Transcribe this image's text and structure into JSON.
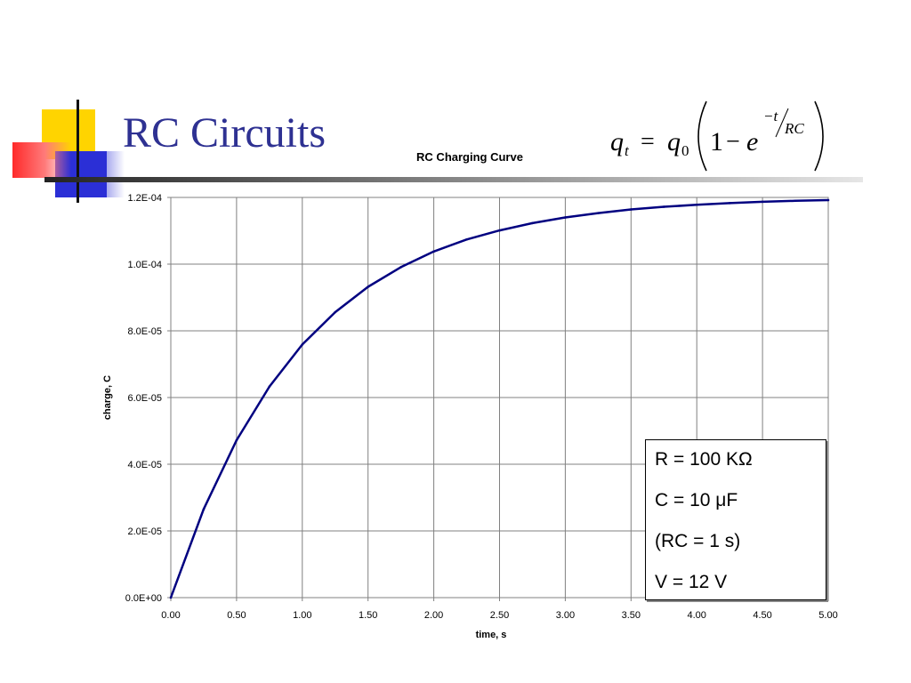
{
  "slide": {
    "title": "RC Circuits",
    "formula": {
      "lhs": "q",
      "lhs_sub": "t",
      "equals": "=",
      "rhs_var": "q",
      "rhs_sub": "0",
      "one": "1",
      "minus": "−",
      "exp_base": "e",
      "exp_num": "−t",
      "exp_den": "RC"
    }
  },
  "chart_data": {
    "type": "line",
    "title": "RC Charging Curve",
    "xlabel": "time, s",
    "ylabel": "charge, C",
    "xlim": [
      0,
      5
    ],
    "ylim": [
      0,
      0.00012
    ],
    "grid": true,
    "x_ticks": [
      "0.00",
      "0.50",
      "1.00",
      "1.50",
      "2.00",
      "2.50",
      "3.00",
      "3.50",
      "4.00",
      "4.50",
      "5.00"
    ],
    "y_ticks": [
      "0.0E+00",
      "2.0E-05",
      "4.0E-05",
      "6.0E-05",
      "8.0E-05",
      "1.0E-04",
      "1.2E-04"
    ],
    "series": [
      {
        "color": "#000080",
        "x": [
          0,
          0.25,
          0.5,
          0.75,
          1.0,
          1.25,
          1.5,
          1.75,
          2.0,
          2.25,
          2.5,
          2.75,
          3.0,
          3.25,
          3.5,
          3.75,
          4.0,
          4.25,
          4.5,
          4.75,
          5.0
        ],
        "y": [
          0,
          2.65e-05,
          4.72e-05,
          6.33e-05,
          7.59e-05,
          8.56e-05,
          9.32e-05,
          9.91e-05,
          0.0001038,
          0.0001074,
          0.0001101,
          0.0001123,
          0.000114,
          0.0001153,
          0.0001164,
          0.0001172,
          0.0001178,
          0.0001183,
          0.0001187,
          0.000119,
          0.0001192
        ]
      }
    ],
    "annotation": {
      "lines": [
        "R = 100 KΩ",
        "C = 10 μF",
        "(RC = 1 s)",
        "V = 12 V"
      ]
    }
  }
}
